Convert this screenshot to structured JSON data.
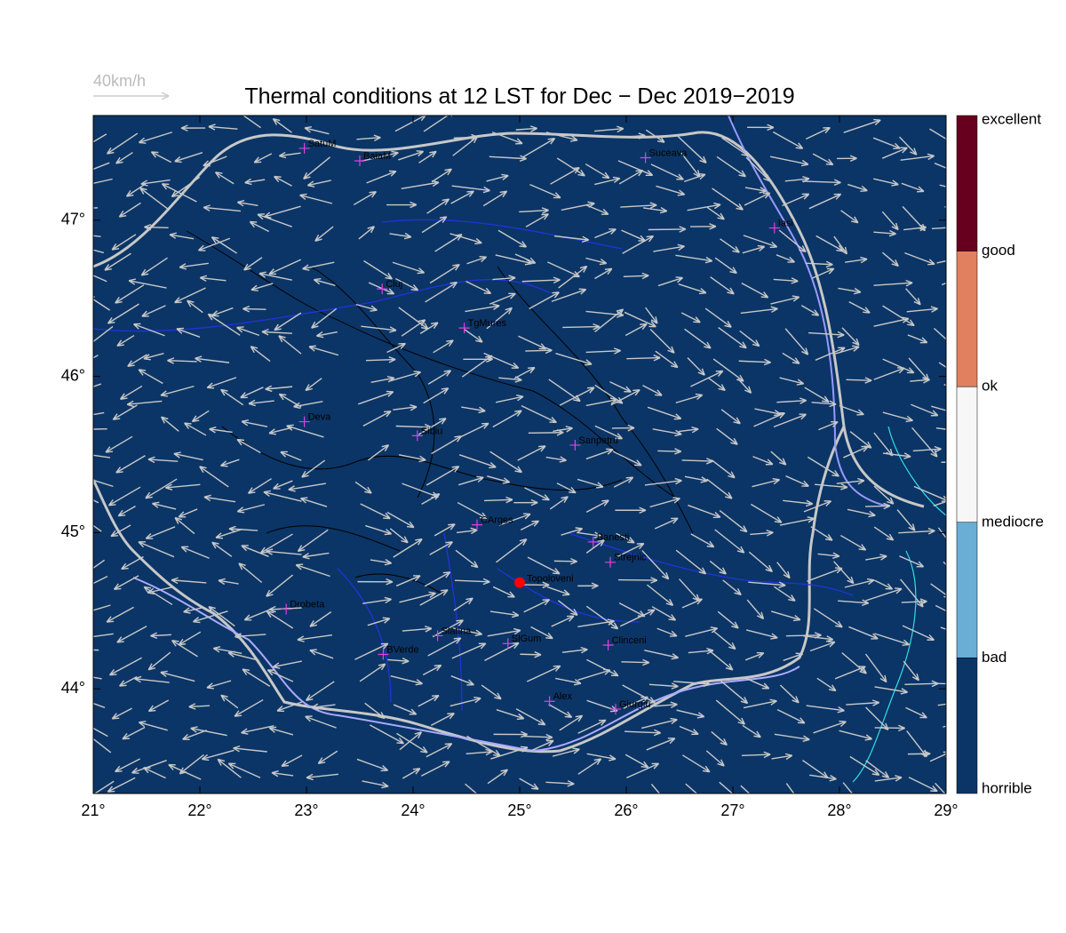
{
  "map": {
    "title": "Thermal conditions at 12 LST for Dec − Dec  2019−2019",
    "wind_scale_label": "40km/h",
    "xlim": [
      21,
      29
    ],
    "ylim": [
      43.33,
      47.67
    ],
    "xticks": [
      {
        "value": 21,
        "label": "21°"
      },
      {
        "value": 22,
        "label": "22°"
      },
      {
        "value": 23,
        "label": "23°"
      },
      {
        "value": 24,
        "label": "24°"
      },
      {
        "value": 25,
        "label": "25°"
      },
      {
        "value": 26,
        "label": "26°"
      },
      {
        "value": 27,
        "label": "27°"
      },
      {
        "value": 28,
        "label": "28°"
      },
      {
        "value": 29,
        "label": "29°"
      }
    ],
    "yticks": [
      {
        "value": 44,
        "label": "44°"
      },
      {
        "value": 45,
        "label": "45°"
      },
      {
        "value": 46,
        "label": "46°"
      },
      {
        "value": 47,
        "label": "47°"
      }
    ],
    "stations": [
      {
        "name": "SatuM",
        "lon": 22.98,
        "lat": 47.46
      },
      {
        "name": "BaiaM",
        "lon": 23.5,
        "lat": 47.38
      },
      {
        "name": "Suceava",
        "lon": 26.18,
        "lat": 47.4
      },
      {
        "name": "Iasi",
        "lon": 27.39,
        "lat": 46.95
      },
      {
        "name": "Cluj",
        "lon": 23.71,
        "lat": 46.56
      },
      {
        "name": "TgMures",
        "lon": 24.48,
        "lat": 46.31
      },
      {
        "name": "Deva",
        "lon": 22.98,
        "lat": 45.71
      },
      {
        "name": "Sibiu",
        "lon": 24.04,
        "lat": 45.62
      },
      {
        "name": "Sanpetru",
        "lon": 25.52,
        "lat": 45.56
      },
      {
        "name": "CArges",
        "lon": 24.6,
        "lat": 45.05
      },
      {
        "name": "Banesti",
        "lon": 25.69,
        "lat": 44.94
      },
      {
        "name": "Strejnic",
        "lon": 25.85,
        "lat": 44.81
      },
      {
        "name": "Drobeta",
        "lon": 22.81,
        "lat": 44.51
      },
      {
        "name": "Slatina",
        "lon": 24.23,
        "lat": 44.34
      },
      {
        "name": "SlGum",
        "lon": 24.89,
        "lat": 44.29
      },
      {
        "name": "BVerde",
        "lon": 23.72,
        "lat": 44.22
      },
      {
        "name": "Clinceni",
        "lon": 25.83,
        "lat": 44.28
      },
      {
        "name": "Alex",
        "lon": 25.28,
        "lat": 43.92
      },
      {
        "name": "Giurgiu",
        "lon": 25.9,
        "lat": 43.87
      }
    ],
    "highlight": {
      "name": "Topoloveni",
      "lon": 25.0,
      "lat": 44.68,
      "color": "#ff0000"
    },
    "colorbar": [
      {
        "label": "excellent",
        "color": "#67001f"
      },
      {
        "label": "good",
        "color": "#e0805f"
      },
      {
        "label": "ok",
        "color": "#f7f7f7"
      },
      {
        "label": "mediocre",
        "color": "#6aaed6"
      },
      {
        "label": "bad",
        "color": "#0b3566"
      }
    ],
    "colorbar_bottom_label": "horrible"
  }
}
